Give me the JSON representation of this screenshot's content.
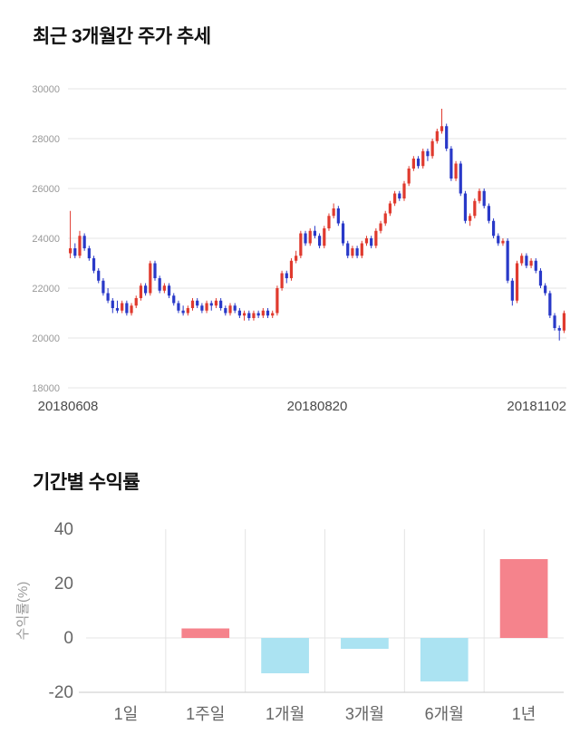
{
  "colors": {
    "grid": "#e4e4e4",
    "baseline": "#c8c8c8",
    "price_ytick": "#999999",
    "price_xtick": "#4a4a4a",
    "bar_tick": "#666666",
    "bar_ylabel": "#999999",
    "title": "#111111"
  },
  "headers": {
    "price_title": "최근 3개월간 주가 추세",
    "returns_title": "기간별 수익률"
  },
  "chart_data": [
    {
      "type": "candlestick",
      "title": "최근 3개월간 주가 추세",
      "ylim": [
        18000,
        30000
      ],
      "yticks": [
        30000,
        28000,
        26000,
        24000,
        22000,
        20000,
        18000
      ],
      "xticks": [
        "20180608",
        "20180820",
        "20181102"
      ],
      "up_color": "#e03a2e",
      "down_color": "#2939c8",
      "grid_on": true,
      "candles": [
        [
          23400,
          25100,
          23200,
          23600
        ],
        [
          23600,
          23800,
          23200,
          23300
        ],
        [
          23300,
          24300,
          23200,
          24100
        ],
        [
          24100,
          24200,
          23500,
          23600
        ],
        [
          23600,
          23700,
          23100,
          23200
        ],
        [
          23200,
          23300,
          22600,
          22700
        ],
        [
          22700,
          22800,
          22200,
          22300
        ],
        [
          22300,
          22400,
          21700,
          21800
        ],
        [
          21800,
          22000,
          21400,
          21500
        ],
        [
          21500,
          21600,
          21000,
          21200
        ],
        [
          21200,
          21500,
          21000,
          21100
        ],
        [
          21100,
          21500,
          21000,
          21400
        ],
        [
          21400,
          21500,
          20900,
          21000
        ],
        [
          21000,
          21400,
          20900,
          21300
        ],
        [
          21300,
          21700,
          21200,
          21600
        ],
        [
          21600,
          22200,
          21500,
          22100
        ],
        [
          22100,
          22200,
          21700,
          21800
        ],
        [
          21800,
          23100,
          21700,
          23000
        ],
        [
          23000,
          23100,
          22300,
          22400
        ],
        [
          22400,
          22500,
          21800,
          21900
        ],
        [
          21900,
          22200,
          21800,
          22100
        ],
        [
          22100,
          22200,
          21600,
          21700
        ],
        [
          21700,
          21800,
          21300,
          21400
        ],
        [
          21400,
          21500,
          21000,
          21100
        ],
        [
          21100,
          21300,
          20900,
          21000
        ],
        [
          21000,
          21300,
          20900,
          21200
        ],
        [
          21200,
          21600,
          21100,
          21500
        ],
        [
          21500,
          21600,
          21200,
          21300
        ],
        [
          21300,
          21400,
          21000,
          21100
        ],
        [
          21100,
          21500,
          21000,
          21400
        ],
        [
          21400,
          21500,
          21100,
          21300
        ],
        [
          21300,
          21600,
          21200,
          21500
        ],
        [
          21500,
          21600,
          21100,
          21200
        ],
        [
          21200,
          21300,
          20900,
          21000
        ],
        [
          21000,
          21400,
          20900,
          21300
        ],
        [
          21300,
          21400,
          21000,
          21100
        ],
        [
          21100,
          21200,
          20800,
          20900
        ],
        [
          20900,
          21100,
          20700,
          21000
        ],
        [
          21000,
          21100,
          20700,
          20800
        ],
        [
          20800,
          21100,
          20700,
          21000
        ],
        [
          21000,
          21100,
          20800,
          20900
        ],
        [
          20900,
          21200,
          20800,
          21100
        ],
        [
          21100,
          21200,
          20800,
          20900
        ],
        [
          20900,
          21100,
          20800,
          21000
        ],
        [
          21000,
          22100,
          20900,
          22000
        ],
        [
          22000,
          22700,
          21900,
          22600
        ],
        [
          22600,
          22700,
          22200,
          22400
        ],
        [
          22400,
          23200,
          22300,
          23100
        ],
        [
          23100,
          23500,
          23000,
          23300
        ],
        [
          23300,
          24300,
          23200,
          24200
        ],
        [
          24200,
          24300,
          23700,
          23800
        ],
        [
          23800,
          24400,
          23700,
          24300
        ],
        [
          24300,
          24500,
          24000,
          24100
        ],
        [
          24100,
          24200,
          23600,
          23700
        ],
        [
          23700,
          24500,
          23600,
          24400
        ],
        [
          24400,
          25000,
          24300,
          24900
        ],
        [
          24900,
          25400,
          24800,
          25200
        ],
        [
          25200,
          25300,
          24500,
          24600
        ],
        [
          24600,
          24700,
          23700,
          23800
        ],
        [
          23800,
          23900,
          23200,
          23300
        ],
        [
          23300,
          23700,
          23200,
          23600
        ],
        [
          23600,
          23700,
          23200,
          23300
        ],
        [
          23300,
          23900,
          23200,
          23800
        ],
        [
          23800,
          24100,
          23700,
          24000
        ],
        [
          24000,
          24100,
          23600,
          23700
        ],
        [
          23700,
          24400,
          23600,
          24300
        ],
        [
          24300,
          24700,
          24200,
          24600
        ],
        [
          24600,
          25100,
          24500,
          25000
        ],
        [
          25000,
          25500,
          24900,
          25400
        ],
        [
          25400,
          25900,
          25300,
          25800
        ],
        [
          25800,
          25900,
          25500,
          25600
        ],
        [
          25600,
          26300,
          25500,
          26200
        ],
        [
          26200,
          26900,
          26100,
          26800
        ],
        [
          26800,
          27300,
          26700,
          27200
        ],
        [
          27200,
          27300,
          26800,
          26900
        ],
        [
          26900,
          27600,
          26800,
          27500
        ],
        [
          27500,
          27600,
          27100,
          27300
        ],
        [
          27300,
          28000,
          27200,
          27900
        ],
        [
          27900,
          28400,
          27800,
          28300
        ],
        [
          28300,
          29200,
          28200,
          28500
        ],
        [
          28500,
          28600,
          27500,
          27600
        ],
        [
          27600,
          27700,
          26300,
          26400
        ],
        [
          26400,
          27100,
          26300,
          27000
        ],
        [
          27000,
          27100,
          25700,
          25800
        ],
        [
          25800,
          25900,
          24600,
          24700
        ],
        [
          24700,
          25000,
          24500,
          24900
        ],
        [
          24900,
          25600,
          24800,
          25500
        ],
        [
          25500,
          26000,
          25400,
          25900
        ],
        [
          25900,
          26000,
          25200,
          25300
        ],
        [
          25300,
          25400,
          24600,
          24700
        ],
        [
          24700,
          24800,
          24000,
          24100
        ],
        [
          24100,
          24200,
          23700,
          23800
        ],
        [
          23800,
          24000,
          23700,
          23900
        ],
        [
          23900,
          24000,
          22200,
          22300
        ],
        [
          22300,
          22400,
          21300,
          21500
        ],
        [
          21500,
          23100,
          21400,
          23000
        ],
        [
          23000,
          23400,
          22900,
          23300
        ],
        [
          23300,
          23400,
          22800,
          22900
        ],
        [
          22900,
          23200,
          22800,
          23100
        ],
        [
          23100,
          23200,
          22600,
          22700
        ],
        [
          22700,
          22800,
          22000,
          22100
        ],
        [
          22100,
          22200,
          21700,
          21800
        ],
        [
          21800,
          21900,
          20800,
          20900
        ],
        [
          20900,
          21000,
          20300,
          20400
        ],
        [
          20400,
          20500,
          19900,
          20300
        ],
        [
          20300,
          21100,
          20200,
          21000
        ]
      ]
    },
    {
      "type": "bar",
      "title": "기간별 수익률",
      "ylabel": "수익률(%)",
      "categories": [
        "1일",
        "1주일",
        "1개월",
        "3개월",
        "6개월",
        "1년"
      ],
      "values": [
        0,
        3.5,
        -13,
        -4,
        -16,
        29
      ],
      "ylim": [
        -20,
        40
      ],
      "yticks": [
        40,
        20,
        0,
        -20
      ],
      "positive_color": "#f5838c",
      "negative_color": "#abe3f2",
      "grid_on": true,
      "legend": "none"
    }
  ]
}
